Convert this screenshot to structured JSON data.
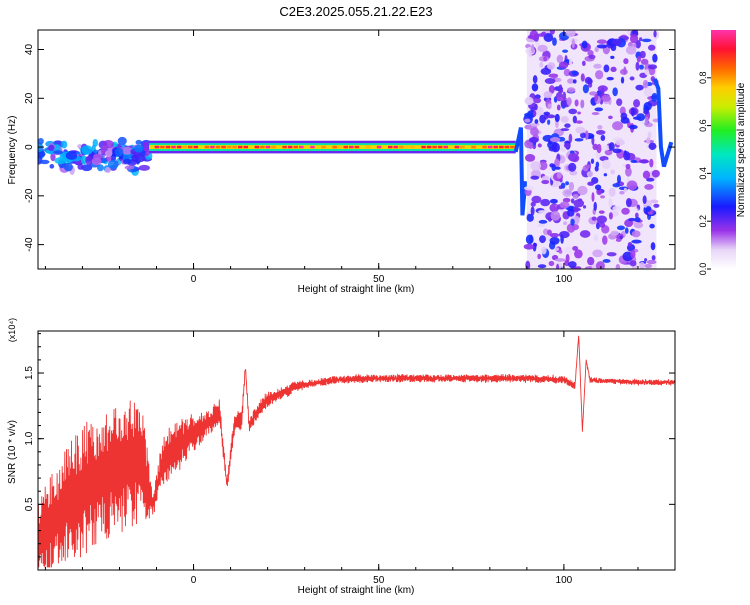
{
  "title": "C2E3.2025.055.21.22.E23",
  "colors": {
    "snr_line": "#ee3333",
    "frame": "#000000",
    "background": "#ffffff"
  },
  "chart_data": [
    {
      "type": "heatmap",
      "xlabel": "Height of straight line (km)",
      "ylabel": "Frequency (Hz)",
      "xlim": [
        -42,
        130
      ],
      "ylim": [
        -50,
        48
      ],
      "x_ticks": [
        {
          "value": 0,
          "label": "0"
        },
        {
          "value": 50,
          "label": "50"
        },
        {
          "value": 100,
          "label": "100"
        }
      ],
      "y_ticks": [
        {
          "value": 40,
          "label": "40"
        },
        {
          "value": 20,
          "label": "20"
        },
        {
          "value": 0,
          "label": "0"
        },
        {
          "value": -20,
          "label": "-20"
        },
        {
          "value": -40,
          "label": "-40"
        }
      ],
      "colorbar": {
        "label": "Normalized spectral amplitude",
        "range": [
          0,
          1
        ],
        "colormap": "rainbow (white-purple-blue-cyan-green-yellow-red-magenta)",
        "ticks": [
          {
            "value": 0.0,
            "label": "0.0"
          },
          {
            "value": 0.2,
            "label": "0.2"
          },
          {
            "value": 0.4,
            "label": "0.4"
          },
          {
            "value": 0.6,
            "label": "0.6"
          },
          {
            "value": 0.8,
            "label": "0.8"
          }
        ]
      },
      "regions": [
        {
          "x_range": [
            -42,
            -12
          ],
          "freq_range": [
            -15,
            10
          ],
          "amplitude": "0.1-0.4, scattered blobs"
        },
        {
          "x_range": [
            -12,
            87
          ],
          "freq_center": 0,
          "amplitude": "0.6-1.0, narrow band near 0 Hz"
        },
        {
          "x_range": [
            87,
            90
          ],
          "freq_range": [
            -28,
            8
          ],
          "amplitude": "0.2-0.4, sweep"
        },
        {
          "x_range": [
            90,
            125
          ],
          "freq_range": [
            -50,
            48
          ],
          "amplitude": "0.05-0.3, broadband noise"
        },
        {
          "x_range": [
            125,
            130
          ],
          "freq_range": [
            -8,
            30
          ],
          "amplitude": "0.2-0.4, sweep"
        }
      ]
    },
    {
      "type": "line",
      "xlabel": "Height of straight line (km)",
      "ylabel": "SNR (10 * v/v)",
      "y_multiplier": "(x10⁴)",
      "xlim": [
        -42,
        130
      ],
      "ylim": [
        0,
        1.82
      ],
      "x_ticks": [
        {
          "value": 0,
          "label": "0"
        },
        {
          "value": 50,
          "label": "50"
        },
        {
          "value": 100,
          "label": "100"
        }
      ],
      "y_ticks": [
        {
          "value": 0.5,
          "label": "0.5"
        },
        {
          "value": 1.0,
          "label": "1.0"
        },
        {
          "value": 1.5,
          "label": "1.5"
        }
      ],
      "series": [
        {
          "x": [
            -42,
            -38,
            -34,
            -30,
            -26,
            -22,
            -18,
            -14,
            -11,
            -8,
            -4,
            0,
            4,
            7,
            9,
            11,
            13,
            14,
            15,
            17,
            20,
            24,
            28,
            32,
            36,
            40,
            50,
            60,
            70,
            80,
            90,
            100,
            103,
            104,
            105,
            106,
            107,
            110,
            120,
            130
          ],
          "y": [
            0.25,
            0.35,
            0.5,
            0.6,
            0.7,
            0.75,
            0.8,
            0.82,
            0.5,
            0.85,
            0.95,
            1.05,
            1.12,
            1.2,
            0.65,
            1.1,
            1.15,
            1.55,
            1.1,
            1.2,
            1.3,
            1.35,
            1.4,
            1.42,
            1.44,
            1.45,
            1.46,
            1.46,
            1.46,
            1.46,
            1.46,
            1.45,
            1.4,
            1.8,
            1.05,
            1.6,
            1.45,
            1.44,
            1.43,
            1.43
          ],
          "amplitude_spread": [
            0.3,
            0.4,
            0.45,
            0.5,
            0.5,
            0.5,
            0.5,
            0.45,
            0.1,
            0.2,
            0.2,
            0.15,
            0.1,
            0.1,
            0.05,
            0.1,
            0.08,
            0.02,
            0.05,
            0.06,
            0.06,
            0.05,
            0.04,
            0.03,
            0.03,
            0.03,
            0.03,
            0.03,
            0.03,
            0.03,
            0.03,
            0.03,
            0.03,
            0.0,
            0.0,
            0.0,
            0.02,
            0.02,
            0.02,
            0.02
          ]
        }
      ]
    }
  ]
}
